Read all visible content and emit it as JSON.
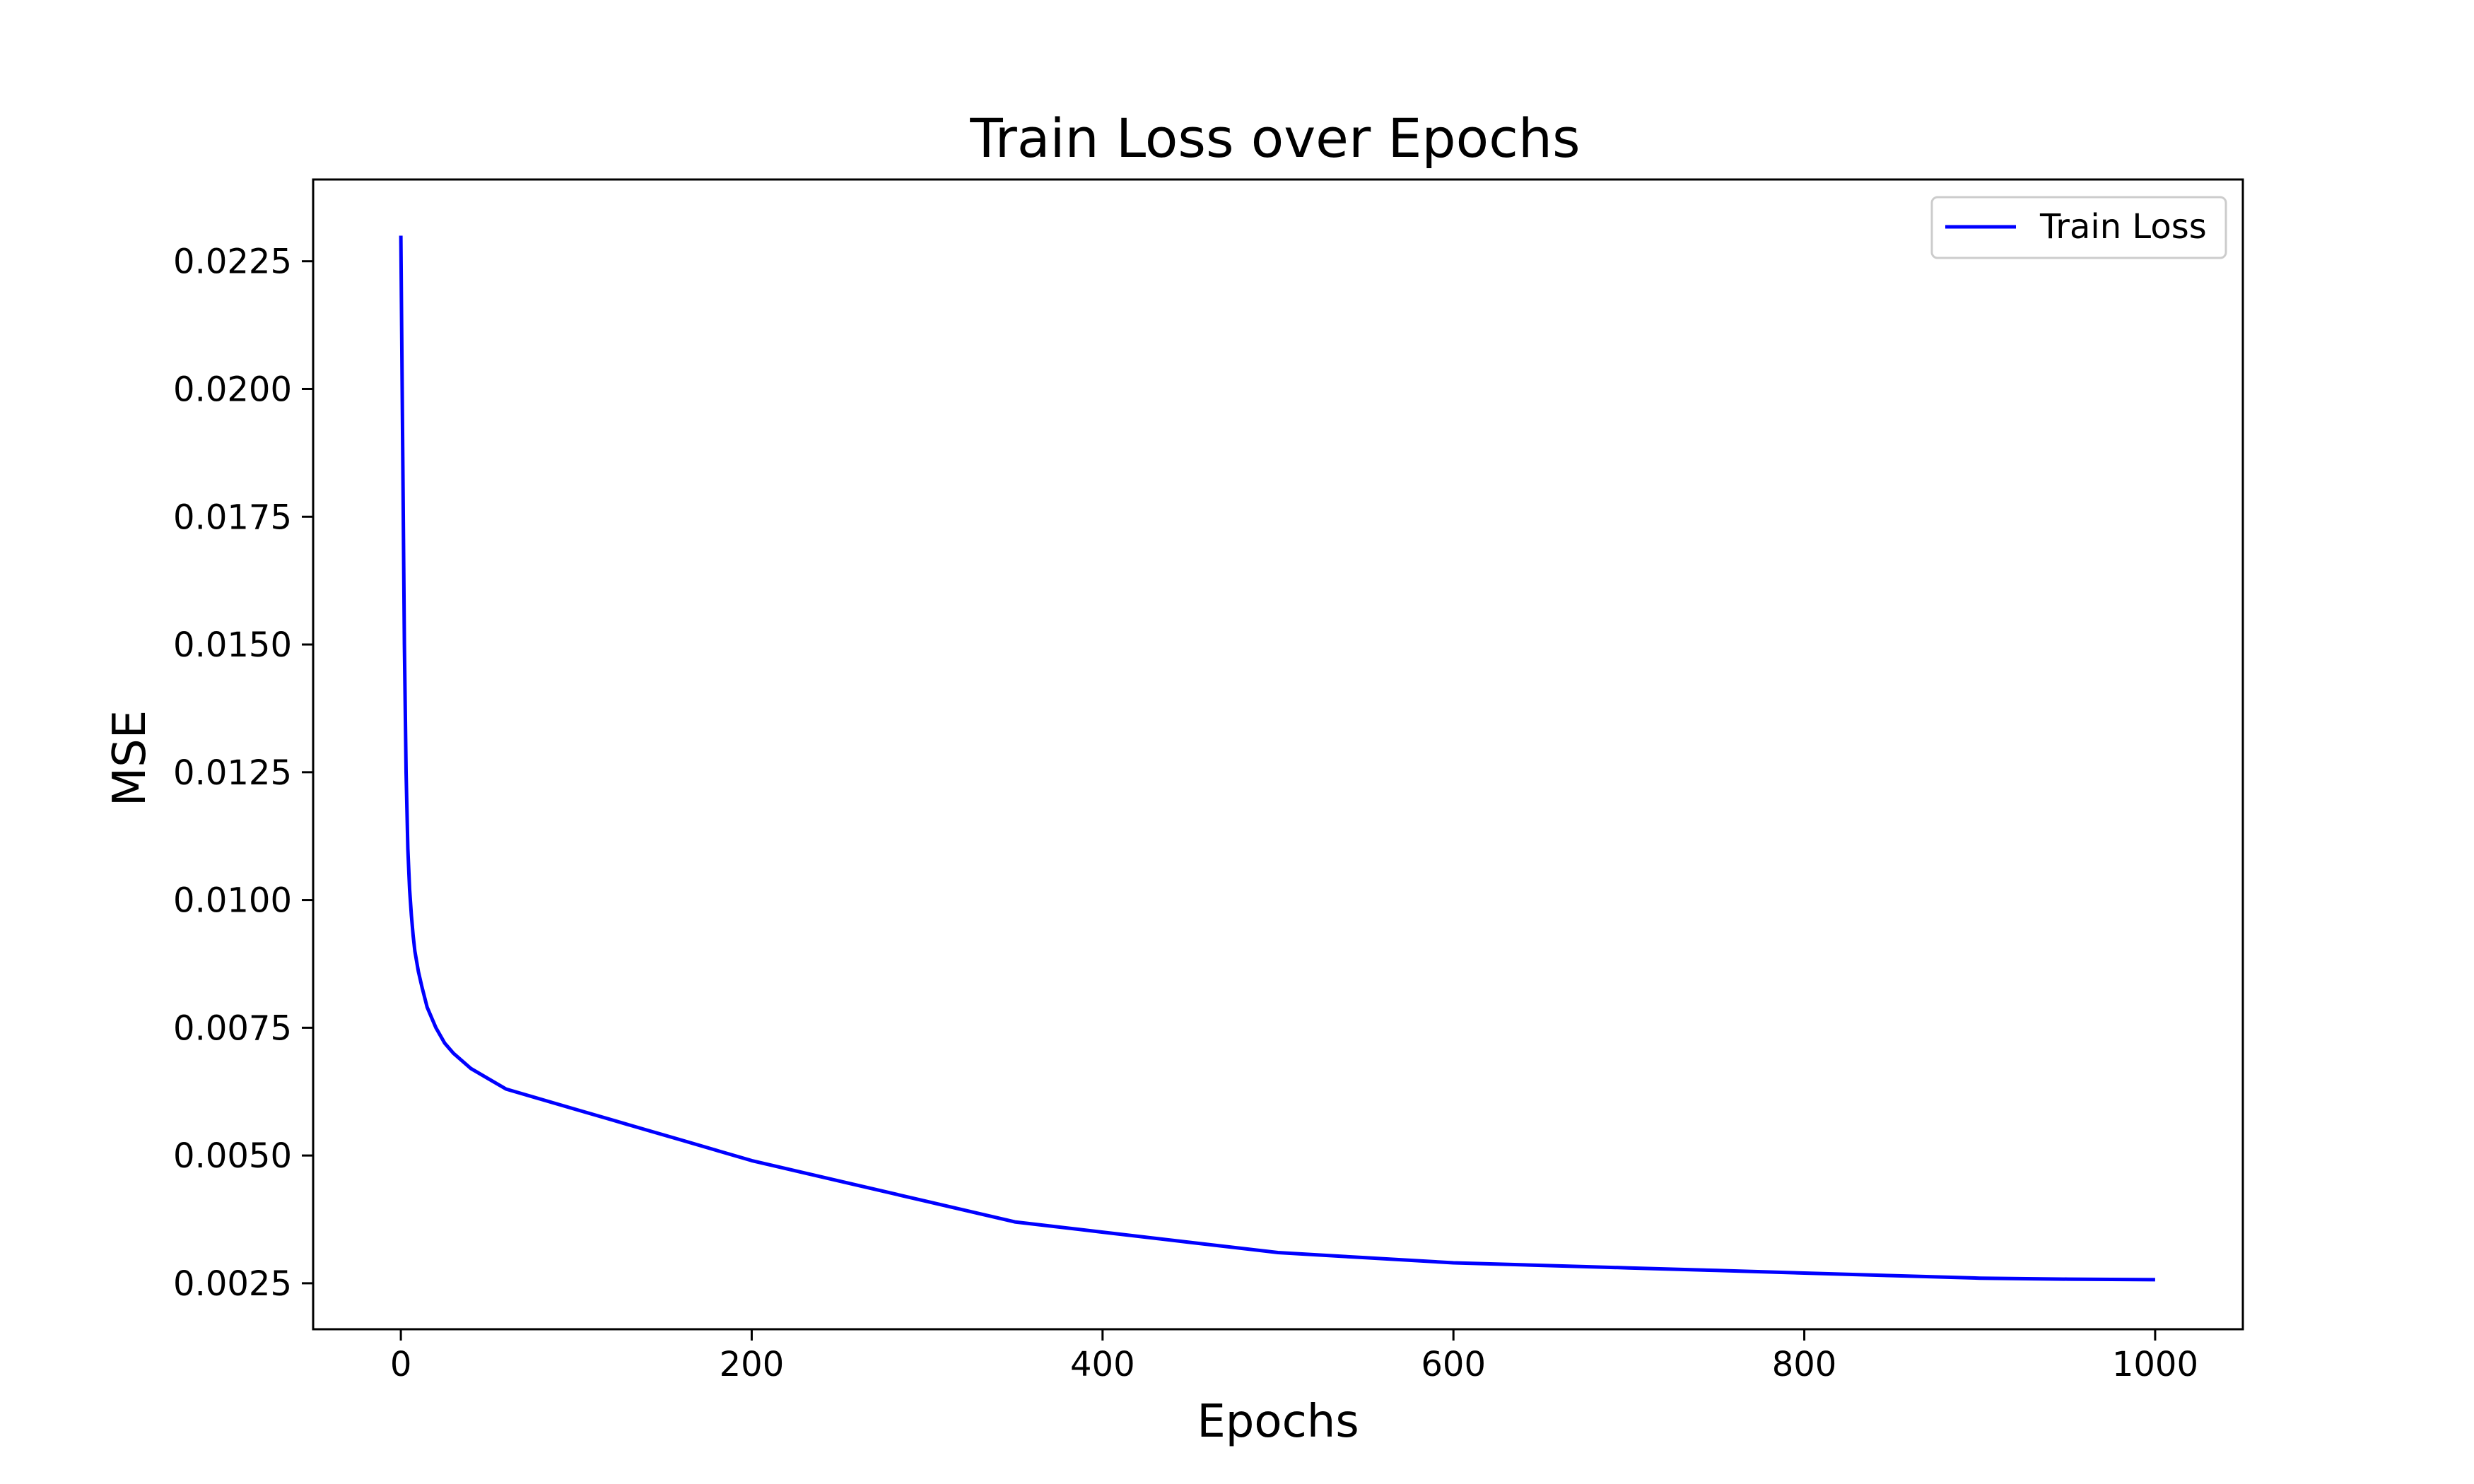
{
  "chart_data": {
    "type": "line",
    "title": "Train Loss over Epochs",
    "xlabel": "Epochs",
    "ylabel": "MSE",
    "xlim": [
      -50,
      1050
    ],
    "ylim": [
      0.0016,
      0.0241
    ],
    "x_ticks": [
      0,
      200,
      400,
      600,
      800,
      1000
    ],
    "x_tick_labels": [
      "0",
      "200",
      "400",
      "600",
      "800",
      "1000"
    ],
    "y_ticks": [
      0.0025,
      0.005,
      0.0075,
      0.01,
      0.0125,
      0.015,
      0.0175,
      0.02,
      0.0225
    ],
    "y_tick_labels": [
      "0.0025",
      "0.0050",
      "0.0075",
      "0.0100",
      "0.0125",
      "0.0150",
      "0.0175",
      "0.0200",
      "0.0225"
    ],
    "grid": false,
    "legend_position": "top-right",
    "series": [
      {
        "name": "Train Loss",
        "color": "#0000ff",
        "x": [
          0,
          1,
          2,
          3,
          4,
          5,
          6,
          7,
          8,
          10,
          12,
          15,
          20,
          25,
          30,
          40,
          50,
          60,
          70,
          80,
          100,
          120,
          140,
          160,
          180,
          200,
          250,
          300,
          350,
          400,
          450,
          500,
          550,
          600,
          650,
          700,
          750,
          800,
          850,
          900,
          950,
          1000
        ],
        "y": [
          0.023,
          0.019,
          0.015,
          0.0125,
          0.011,
          0.0102,
          0.0097,
          0.0093,
          0.009,
          0.0086,
          0.0083,
          0.0079,
          0.0075,
          0.0072,
          0.007,
          0.0067,
          0.0065,
          0.0063,
          0.0062,
          0.0061,
          0.0059,
          0.0057,
          0.0055,
          0.0053,
          0.0051,
          0.0049,
          0.0045,
          0.0041,
          0.0037,
          0.0035,
          0.0033,
          0.0031,
          0.003,
          0.0029,
          0.00285,
          0.0028,
          0.00275,
          0.0027,
          0.00265,
          0.0026,
          0.00258,
          0.00257
        ]
      }
    ]
  }
}
